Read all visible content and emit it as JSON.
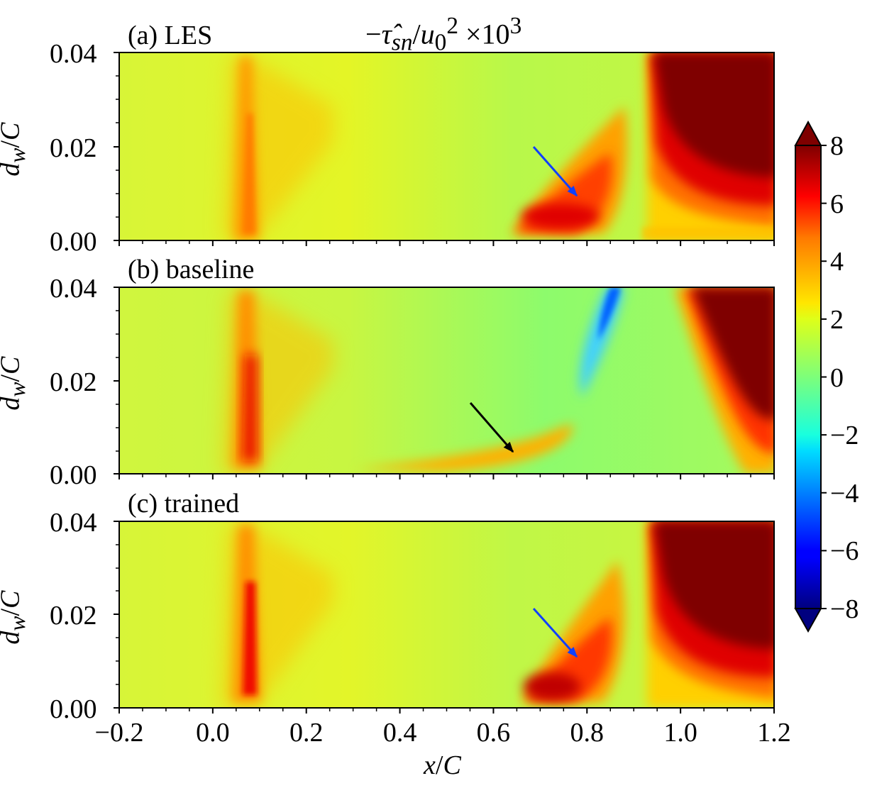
{
  "figure": {
    "title_html": "−<i>τ̂</i><sub><i>sn</i></sub>/<i>u</i><sub>0</sub><sup>2</sup> ×10<sup>3</sup>",
    "xlabel_html": "<i>x</i>/<i>C</i>",
    "ylabel_html": "<i>d</i><sub><i>w</i></sub>/<i>C</i>"
  },
  "chart_data": [
    {
      "type": "heatmap",
      "panel_label": "(a) LES",
      "xlim": [
        -0.2,
        1.2
      ],
      "ylim": [
        0.0,
        0.04
      ],
      "yticks": [
        "0.00",
        "0.02",
        "0.04"
      ],
      "arrow": {
        "from": [
          0.685,
          0.02
        ],
        "to": [
          0.785,
          0.009
        ],
        "color": "#1040ff"
      },
      "features": [
        {
          "name": "leading-edge streak",
          "x": 0.085,
          "value": 3.5
        },
        {
          "name": "separation bubble",
          "x": 0.78,
          "value": 6.8
        },
        {
          "name": "trailing-edge wake",
          "x": 1.06,
          "value": 8.0
        }
      ]
    },
    {
      "type": "heatmap",
      "panel_label": "(b) baseline",
      "xlim": [
        -0.2,
        1.2
      ],
      "ylim": [
        0.0,
        0.04
      ],
      "yticks": [
        "0.00",
        "0.02",
        "0.04"
      ],
      "arrow": {
        "from": [
          0.55,
          0.0155
        ],
        "to": [
          0.645,
          0.0045
        ],
        "color": "#000000"
      },
      "features": [
        {
          "name": "leading-edge streak",
          "x": 0.085,
          "value": 6.5
        },
        {
          "name": "weak near-wall band",
          "x": 0.7,
          "value": 3.5
        },
        {
          "name": "negative streak",
          "x": 0.84,
          "value": -4.5
        },
        {
          "name": "trailing-edge wake",
          "x": 1.1,
          "value": 8.0
        }
      ]
    },
    {
      "type": "heatmap",
      "panel_label": "(c) trained",
      "xlim": [
        -0.2,
        1.2
      ],
      "ylim": [
        0.0,
        0.04
      ],
      "yticks": [
        "0.00",
        "0.02",
        "0.04"
      ],
      "arrow": {
        "from": [
          0.685,
          0.0215
        ],
        "to": [
          0.785,
          0.0105
        ],
        "color": "#1040ff"
      },
      "features": [
        {
          "name": "leading-edge streak",
          "x": 0.085,
          "value": 6.0
        },
        {
          "name": "separation bubble",
          "x": 0.76,
          "value": 7.0
        },
        {
          "name": "trailing-edge wake",
          "x": 1.05,
          "value": 8.0
        }
      ]
    }
  ],
  "xticks": [
    "−0.2",
    "0.0",
    "0.2",
    "0.4",
    "0.6",
    "0.8",
    "1.0",
    "1.2"
  ],
  "colorbar": {
    "vmin": -8,
    "vmax": 8,
    "ticks": [
      "−8",
      "−6",
      "−4",
      "−2",
      "0",
      "2",
      "4",
      "6",
      "8"
    ],
    "colormap": "jet",
    "extend": "both"
  }
}
